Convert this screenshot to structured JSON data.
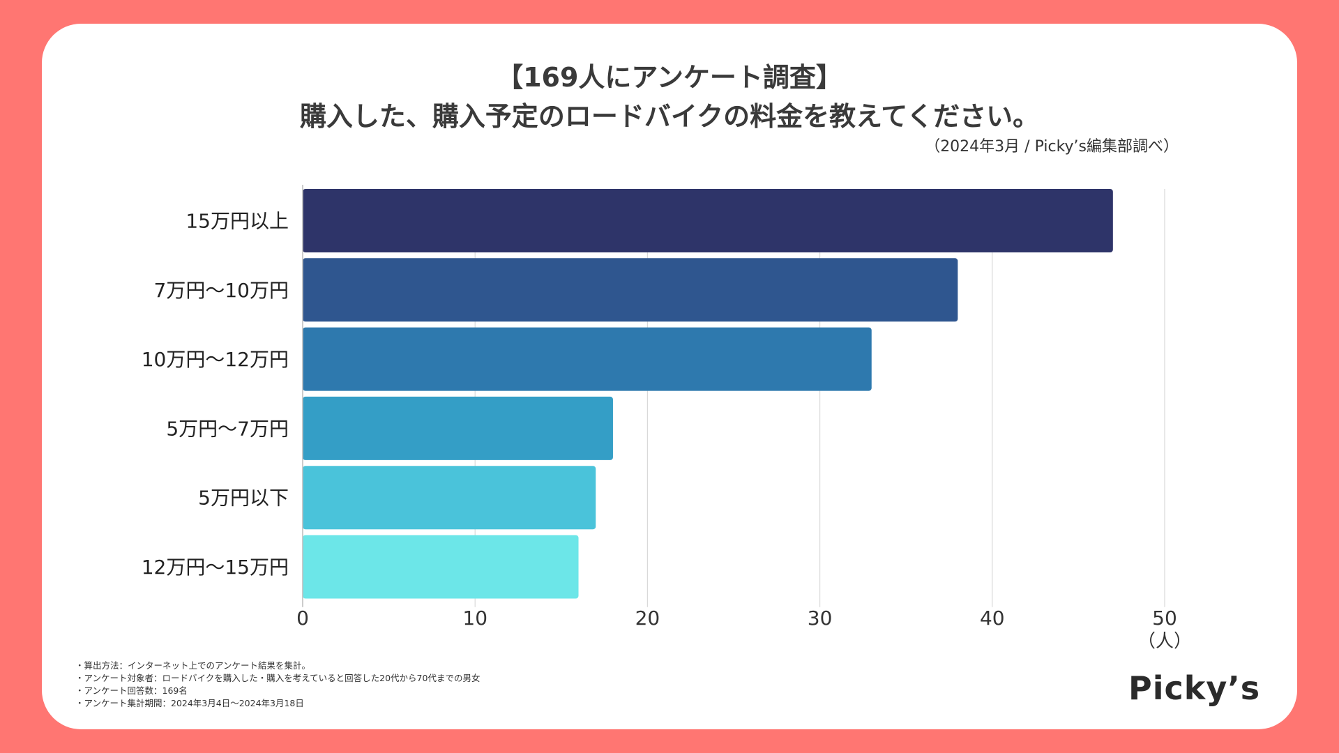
{
  "title_line1": "【169人にアンケート調査】",
  "title_line2": "購入した、購入予定のロードバイクの料金を教えてください。",
  "subtitle": "（2024年3月 / Picky’s編集部調べ）",
  "unit_label": "（人）",
  "brand": "Picky’s",
  "notes": [
    "・算出方法：インターネット上でのアンケート結果を集計。",
    "・アンケート対象者：ロードバイクを購入した・購入を考えていると回答した20代から70代までの男女",
    "・アンケート回答数：169名",
    "・アンケート集計期間：2024年3月4日〜2024年3月18日"
  ],
  "chart_data": {
    "type": "bar",
    "orientation": "horizontal",
    "categories": [
      "15万円以上",
      "7万円〜10万円",
      "10万円〜12万円",
      "5万円〜7万円",
      "5万円以下",
      "12万円〜15万円"
    ],
    "values": [
      47,
      38,
      33,
      18,
      17,
      16
    ],
    "colors": [
      "#2e3469",
      "#2f568f",
      "#2e79ae",
      "#349ec6",
      "#4ac3da",
      "#6ce6e8"
    ],
    "xlim": [
      0,
      50
    ],
    "ticks": [
      0,
      10,
      20,
      30,
      40,
      50
    ],
    "grid": true
  }
}
